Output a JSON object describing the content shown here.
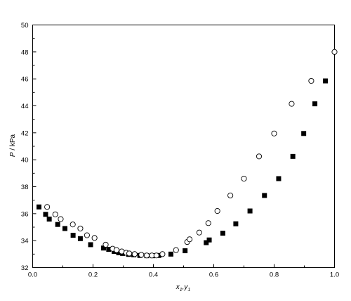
{
  "chart_data": {
    "type": "scatter",
    "title": "",
    "xlabel": "x1,y1",
    "ylabel": "P / kPa",
    "xlim": [
      0.0,
      1.0
    ],
    "ylim": [
      32,
      50
    ],
    "xticks": [
      0.0,
      0.2,
      0.4,
      0.6,
      0.8,
      1.0
    ],
    "xtick_labels": [
      "0.0",
      "0.2",
      "0.4",
      "0.6",
      "0.8",
      "1.0"
    ],
    "yticks": [
      32,
      34,
      36,
      38,
      40,
      42,
      44,
      46,
      48,
      50
    ],
    "ytick_labels": [
      "32",
      "34",
      "36",
      "38",
      "40",
      "42",
      "44",
      "46",
      "48",
      "50"
    ],
    "grid": false,
    "legend": "none",
    "series": [
      {
        "marker": "filled-square",
        "color": "#000000",
        "points": [
          [
            0.021,
            36.5
          ],
          [
            0.043,
            35.95
          ],
          [
            0.055,
            35.6
          ],
          [
            0.083,
            35.2
          ],
          [
            0.107,
            34.9
          ],
          [
            0.134,
            34.4
          ],
          [
            0.158,
            34.15
          ],
          [
            0.192,
            33.7
          ],
          [
            0.235,
            33.45
          ],
          [
            0.252,
            33.35
          ],
          [
            0.27,
            33.2
          ],
          [
            0.285,
            33.1
          ],
          [
            0.298,
            33.05
          ],
          [
            0.318,
            32.98
          ],
          [
            0.335,
            32.95
          ],
          [
            0.355,
            32.9
          ],
          [
            0.378,
            32.88
          ],
          [
            0.398,
            32.88
          ],
          [
            0.418,
            32.9
          ],
          [
            0.458,
            33.0
          ],
          [
            0.505,
            33.25
          ],
          [
            0.575,
            33.85
          ],
          [
            0.585,
            34.05
          ],
          [
            0.63,
            34.55
          ],
          [
            0.673,
            35.25
          ],
          [
            0.72,
            36.2
          ],
          [
            0.768,
            37.35
          ],
          [
            0.815,
            38.6
          ],
          [
            0.862,
            40.25
          ],
          [
            0.898,
            41.95
          ],
          [
            0.935,
            44.15
          ],
          [
            0.97,
            45.85
          ]
        ]
      },
      {
        "marker": "open-circle",
        "color": "#000000",
        "points": [
          [
            0.048,
            36.5
          ],
          [
            0.075,
            35.95
          ],
          [
            0.093,
            35.6
          ],
          [
            0.133,
            35.2
          ],
          [
            0.158,
            34.9
          ],
          [
            0.18,
            34.4
          ],
          [
            0.205,
            34.2
          ],
          [
            0.242,
            33.7
          ],
          [
            0.265,
            33.4
          ],
          [
            0.278,
            33.3
          ],
          [
            0.295,
            33.2
          ],
          [
            0.31,
            33.1
          ],
          [
            0.32,
            33.05
          ],
          [
            0.338,
            33.0
          ],
          [
            0.36,
            32.95
          ],
          [
            0.378,
            32.9
          ],
          [
            0.395,
            32.9
          ],
          [
            0.41,
            32.9
          ],
          [
            0.43,
            33.0
          ],
          [
            0.475,
            33.3
          ],
          [
            0.512,
            33.9
          ],
          [
            0.52,
            34.1
          ],
          [
            0.552,
            34.6
          ],
          [
            0.582,
            35.3
          ],
          [
            0.612,
            36.2
          ],
          [
            0.655,
            37.35
          ],
          [
            0.7,
            38.6
          ],
          [
            0.75,
            40.25
          ],
          [
            0.8,
            41.95
          ],
          [
            0.858,
            44.15
          ],
          [
            0.923,
            45.85
          ],
          [
            1.0,
            48.0
          ]
        ]
      }
    ]
  }
}
